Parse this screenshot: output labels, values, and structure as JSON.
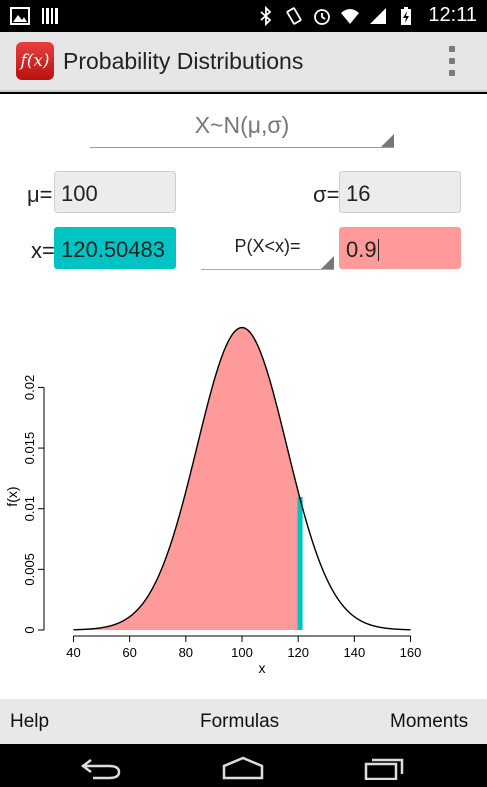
{
  "status_bar": {
    "time": "12:11",
    "icons": [
      "image-icon",
      "barcode-icon",
      "bluetooth-icon",
      "rotate-icon",
      "alarm-icon",
      "wifi-icon",
      "signal-icon",
      "battery-charging-icon"
    ]
  },
  "app_bar": {
    "icon_text": "f(x)",
    "title": "Probability Distributions"
  },
  "distribution": {
    "selected": "X~N(μ,σ)"
  },
  "params": {
    "mu_label": "μ=",
    "mu_value": "100",
    "sigma_label": "σ=",
    "sigma_value": "16",
    "x_label": "x=",
    "x_value": "120.50483",
    "prob_type": "P(X<x)=",
    "prob_value": "0.9"
  },
  "colors": {
    "x_field": "#00c4c4",
    "prob_field": "#ff9a9a",
    "shade": "#ff9a9a",
    "marker": "#00c4c4"
  },
  "chart_data": {
    "type": "area",
    "distribution": "normal",
    "mu": 100,
    "sigma": 16,
    "shade_upper": 120.50483,
    "xlabel": "x",
    "ylabel": "f(x)",
    "xlim": [
      32,
      168
    ],
    "ylim": [
      0,
      0.0249
    ],
    "x_ticks": [
      40,
      60,
      80,
      100,
      120,
      140,
      160
    ],
    "x_tick_labels": [
      "40",
      "60",
      "80",
      "100",
      "120",
      "140",
      "160"
    ],
    "y_ticks": [
      0,
      0.005,
      0.01,
      0.015,
      0.02
    ],
    "y_tick_labels": [
      "0",
      "0.005",
      "0.01",
      "0.015",
      "0.02"
    ]
  },
  "bottom_menu": {
    "help": "Help",
    "formulas": "Formulas",
    "moments": "Moments"
  },
  "nav_bar": {
    "icons": [
      "back-icon",
      "home-icon",
      "recents-icon"
    ]
  }
}
